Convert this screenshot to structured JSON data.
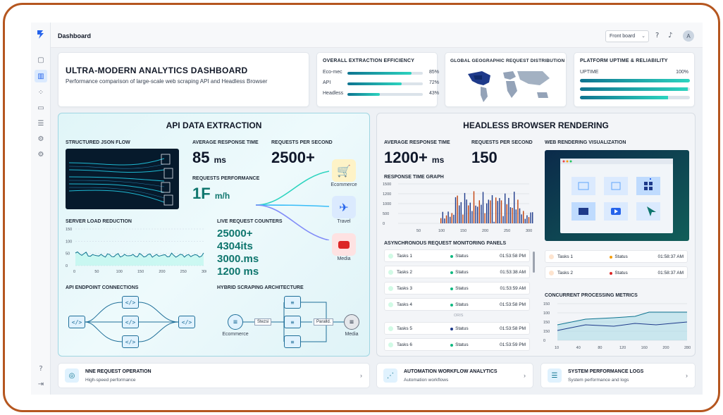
{
  "header": {
    "title": "Dashboard",
    "board_select": "Front board",
    "avatar": "A"
  },
  "hero": {
    "title": "ULTRA-MODERN ANALYTICS DASHBOARD",
    "subtitle": "Performance comparison of large-scale web scraping API and Headless Browser"
  },
  "efficiency": {
    "title": "OVERALL EXTRACTION EFFICIENCY",
    "rows": [
      {
        "label": "Eco-mec",
        "percent": "85%",
        "value": 85
      },
      {
        "label": "API",
        "percent": "72%",
        "value": 72
      },
      {
        "label": "Headless",
        "percent": "43%",
        "value": 43
      }
    ]
  },
  "geo": {
    "title": "GLOBAL GEOGRAPHIC REQUEST DISTRIBUTION"
  },
  "uptime": {
    "title": "PLATFORM UPTIME & RELIABILITY",
    "label": "UPTIME",
    "percent": "100%",
    "bars": [
      100,
      98,
      80
    ]
  },
  "api": {
    "title": "API DATA EXTRACTION",
    "json_flow": "STRUCTURED JSON FLOW",
    "avg_label": "AVERAGE RESPONSE TIME",
    "avg_value": "85",
    "avg_unit": "ms",
    "rps_label": "REQUESTS PER SECOND",
    "rps_value": "2500+",
    "perf_label": "REQUESTS PERFORMANCE",
    "perf_value": "1F",
    "perf_unit": "m/h",
    "categories": [
      "Ecommerce",
      "Travel",
      "Media"
    ],
    "server_label": "SERVER LOAD REDUCTION",
    "server_y": [
      "150",
      "100",
      "50",
      "0"
    ],
    "server_x": [
      "0",
      "50",
      "100",
      "150",
      "200",
      "250",
      "300"
    ],
    "counters_label": "LIVE REQUEST COUNTERS",
    "counters": [
      "25000+",
      "4304its",
      "3000.ms",
      "1200 ms"
    ],
    "endpoint_label": "API ENDPOINT CONNECTIONS",
    "hybrid_label": "HYBRID SCRAPING ARCHITECTURE",
    "hybrid_left": "Ecommerce",
    "hybrid_right": "Media",
    "hybrid_tag1": "Stezsi",
    "hybrid_tag2": "Paralld."
  },
  "headless": {
    "title": "HEADLESS BROWSER RENDERING",
    "avg_label": "AVERAGE RESPONSE TIME",
    "avg_value": "1200+",
    "avg_unit": "ms",
    "rps_label": "REQUESTS PER SECOND",
    "rps_value": "150",
    "graph_label": "RESPONSE TIME GRAPH",
    "graph_y": [
      "1500",
      "1200",
      "1000",
      "500",
      "0"
    ],
    "graph_x": [
      "50",
      "100",
      "150",
      "200",
      "250",
      "300"
    ],
    "render_label": "WEB RENDERING VISUALIZATION",
    "async_label": "ASYNCHRONOUS REQUEST MONITORING PANELS",
    "status_word": "Status",
    "separator": "ORIS",
    "tasks_left": [
      {
        "name": "Tasks 1",
        "time": "01:53:58 PM"
      },
      {
        "name": "Tasks 2",
        "time": "01:53:38 AM"
      },
      {
        "name": "Tasks 3",
        "time": "01:53:59 AM"
      },
      {
        "name": "Tasks 4",
        "time": "01:53:58 PM"
      },
      {
        "name": "Tasks 5",
        "time": "01:53:58 PM"
      },
      {
        "name": "Tasks 6",
        "time": "01:53:59 PM"
      }
    ],
    "tasks_right": [
      {
        "name": "Tasks 1",
        "time": "01:58:37 AM"
      },
      {
        "name": "Tasks 2",
        "time": "01:58:37 AM"
      }
    ],
    "concurrent_label": "CONCURRENT PROCESSING METRICS",
    "conc_y": [
      "150",
      "100",
      "150",
      "150",
      "0"
    ],
    "conc_x": [
      "10",
      "40",
      "80",
      "120",
      "160",
      "200",
      "280"
    ]
  },
  "bottom": [
    {
      "title": "NNE REQUEST OPERATION",
      "sub": "High-speed performance"
    },
    {
      "title": "AUTOMATION WORKFLOW ANALYTICS",
      "sub": "Automation workflows"
    },
    {
      "title": "SYSTEM PERFORMANCE LOGS",
      "sub": "System performance and logs"
    }
  ],
  "colors": {
    "accent": "#0e7490",
    "frame": "#b5561f",
    "status_green": "#10b981",
    "status_orange": "#f59e0b",
    "status_red": "#dc2626"
  }
}
